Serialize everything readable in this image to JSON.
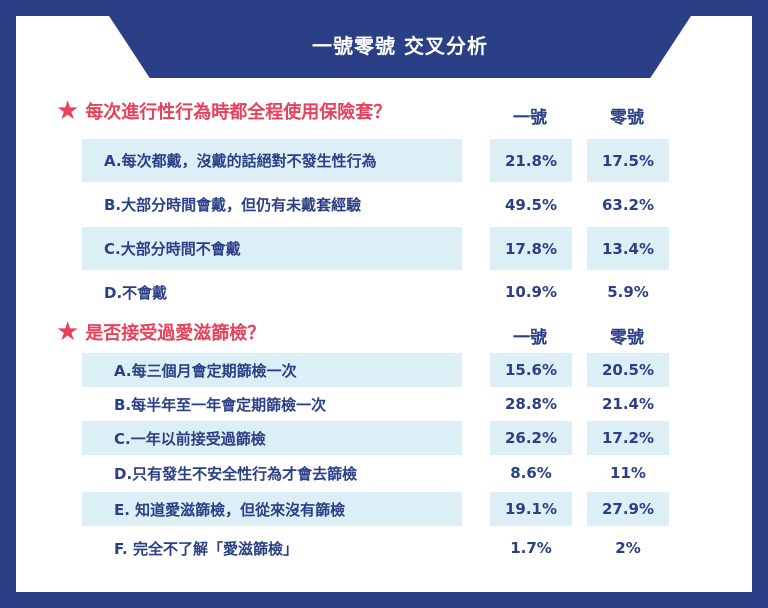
{
  "header": {
    "title": "一號零號 交叉分析"
  },
  "colors": {
    "navy": "#2b3f86",
    "red": "#e8415b",
    "light_blue": "#dceef6"
  },
  "section1": {
    "question": "每次進行性行為時都全程使用保險套？",
    "col1": "一號",
    "col2": "零號",
    "rows": [
      {
        "label": "A.每次都戴，沒戴的話絕對不發生性行為",
        "v1": "21.8%",
        "v2": "17.5%"
      },
      {
        "label": "B.大部分時間會戴，但仍有未戴套經驗",
        "v1": "49.5%",
        "v2": "63.2%"
      },
      {
        "label": "C.大部分時間不會戴",
        "v1": "17.8%",
        "v2": "13.4%"
      },
      {
        "label": "D.不會戴",
        "v1": "10.9%",
        "v2": "5.9%"
      }
    ]
  },
  "section2": {
    "question": "是否接受過愛滋篩檢？",
    "col1": "一號",
    "col2": "零號",
    "rows": [
      {
        "label": "A.每三個月會定期篩檢一次",
        "v1": "15.6%",
        "v2": "20.5%"
      },
      {
        "label": "B.每半年至一年會定期篩檢一次",
        "v1": "28.8%",
        "v2": "21.4%"
      },
      {
        "label": "C.一年以前接受過篩檢",
        "v1": "26.2%",
        "v2": "17.2%"
      },
      {
        "label": "D.只有發生不安全性行為才會去篩檢",
        "v1": "8.6%",
        "v2": "11%"
      },
      {
        "label": "E. 知道愛滋篩檢，但從來沒有篩檢",
        "v1": "19.1%",
        "v2": "27.9%"
      },
      {
        "label": "F. 完全不了解「愛滋篩檢」",
        "v1": "1.7%",
        "v2": "2%"
      }
    ]
  }
}
